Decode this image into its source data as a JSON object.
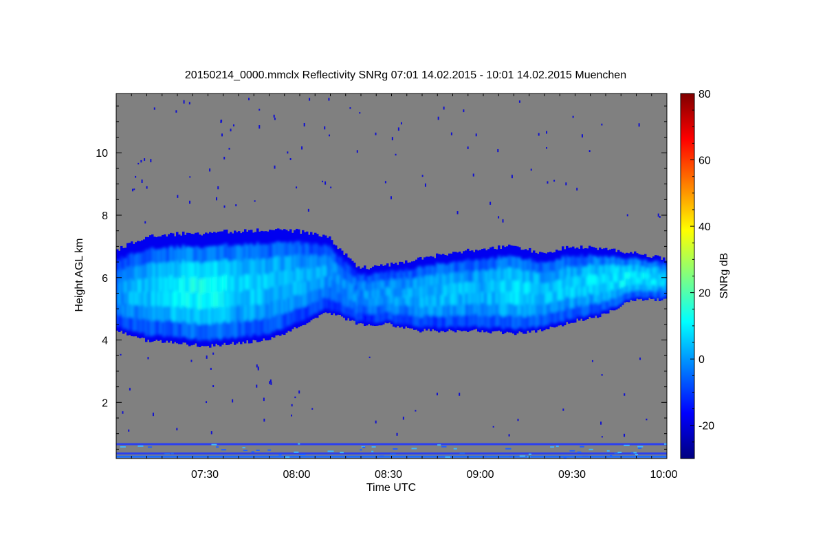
{
  "chart_data": {
    "type": "heatmap",
    "title": "20150214_0000.mmclx Reflectivity SNRg   07:01 14.02.2015 - 10:01 14.02.2015 Muenchen",
    "xlabel": "Time UTC",
    "ylabel": "Height AGL km",
    "colorbar_label": "SNRg dB",
    "x_range": [
      "07:01",
      "10:01"
    ],
    "ylim": [
      0.2,
      11.9
    ],
    "clim": [
      -30,
      80
    ],
    "x_ticks": [
      "07:30",
      "08:00",
      "08:30",
      "09:00",
      "09:30",
      "10:00"
    ],
    "y_ticks": [
      2,
      4,
      6,
      8,
      10
    ],
    "colorbar_ticks": [
      -20,
      0,
      20,
      40,
      60,
      80
    ],
    "background_color": "#808080",
    "colormap": [
      "#00007f",
      "#0000ff",
      "#0080ff",
      "#00ffff",
      "#80ff80",
      "#ffff00",
      "#ff8000",
      "#ff0000",
      "#7f0000"
    ],
    "cloud_layer": {
      "time": [
        "07:01",
        "07:10",
        "07:20",
        "07:30",
        "07:40",
        "07:50",
        "08:00",
        "08:10",
        "08:20",
        "08:30",
        "08:40",
        "08:50",
        "09:00",
        "09:10",
        "09:20",
        "09:30",
        "09:40",
        "09:50",
        "10:01"
      ],
      "base_km": [
        4.3,
        4.0,
        3.9,
        3.8,
        3.9,
        4.0,
        4.4,
        4.9,
        4.5,
        4.5,
        4.3,
        4.3,
        4.3,
        4.2,
        4.3,
        4.6,
        4.8,
        5.3,
        5.3
      ],
      "top_km": [
        6.9,
        7.3,
        7.4,
        7.4,
        7.5,
        7.5,
        7.5,
        7.3,
        6.3,
        6.4,
        6.6,
        6.8,
        6.9,
        7.0,
        6.8,
        7.0,
        6.9,
        6.8,
        6.6
      ],
      "peak_snr_db": [
        5,
        10,
        16,
        20,
        14,
        10,
        8,
        5,
        2,
        6,
        8,
        10,
        8,
        14,
        10,
        12,
        14,
        16,
        12
      ]
    },
    "surface_clutter_km": [
      0.25,
      0.35,
      0.65
    ]
  }
}
